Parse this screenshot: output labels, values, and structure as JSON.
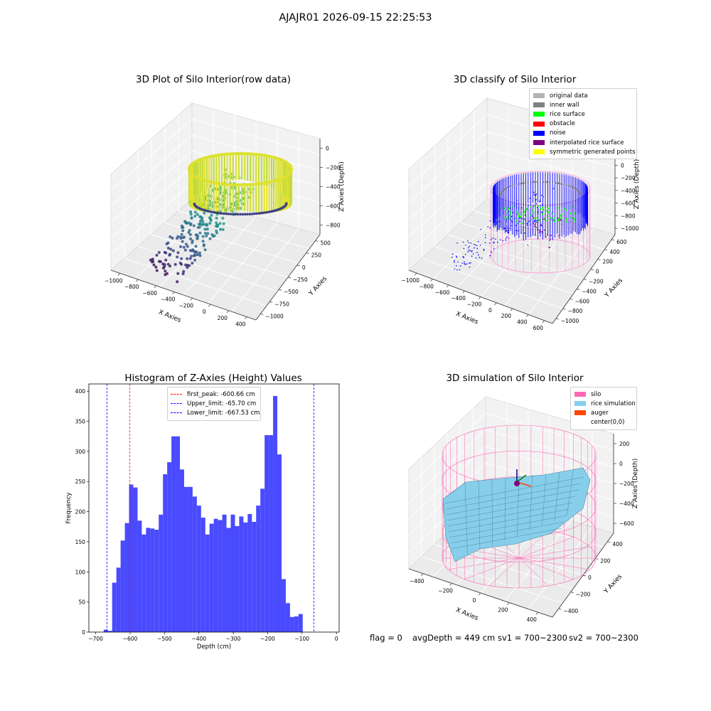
{
  "figure": {
    "suptitle": "AJAJR01 2026-09-15 22:25:53",
    "footer": {
      "flag": "flag = 0",
      "avg": "avgDepth = 449 cm",
      "sv1": "sv1 = 700~2300",
      "sv2": "sv2 = 700~2300"
    }
  },
  "chart_data": [
    {
      "id": "raw",
      "type": "scatter",
      "title": "3D Plot of Silo Interior(row data)",
      "xlabel": "X Axies",
      "ylabel": "Y Axies",
      "zlabel": "Z Axies (Depth)",
      "xticks": [
        "−1000",
        "−800",
        "−600",
        "−400",
        "−200",
        "0",
        "200",
        "400"
      ],
      "yticks": [
        "500",
        "250",
        "0",
        "−250",
        "−500",
        "−750",
        "−1000"
      ],
      "zticks": [
        "0",
        "−200",
        "−400",
        "−600",
        "−800"
      ],
      "colormap": "viridis",
      "colors": {
        "low": "#440154",
        "mid": "#21918c",
        "high": "#fde725"
      }
    },
    {
      "id": "classify",
      "type": "scatter",
      "title": "3D classify of Silo Interior",
      "xlabel": "X Axies",
      "ylabel": "Y Axies",
      "zlabel": "Z Axies (Depth)",
      "xticks": [
        "−1000",
        "−800",
        "−600",
        "−400",
        "−200",
        "0",
        "200",
        "400",
        "600"
      ],
      "yticks": [
        "600",
        "400",
        "200",
        "0",
        "−200",
        "−400",
        "−600",
        "−800",
        "−1000"
      ],
      "zticks": [
        "400",
        "200",
        "0",
        "−200",
        "−400",
        "−600",
        "−800",
        "−1000"
      ],
      "legend": [
        {
          "label": "original data",
          "color": "#b3b3b3"
        },
        {
          "label": "inner wall",
          "color": "#808080"
        },
        {
          "label": "rice surface",
          "color": "#00ff00"
        },
        {
          "label": "obstacle",
          "color": "#ff0000"
        },
        {
          "label": "noise",
          "color": "#0000ff"
        },
        {
          "label": "interpolated rice surface",
          "color": "#800080"
        },
        {
          "label": "symmetric generated points",
          "color": "#ffff00"
        }
      ],
      "silo_color": "#ff8cd2"
    },
    {
      "id": "histogram",
      "type": "bar",
      "title": "Histogram of Z-Axies (Height) Values",
      "xlabel": "Depth (cm)",
      "ylabel": "Frequency",
      "xlim": [
        -720,
        8
      ],
      "ylim": [
        0,
        412
      ],
      "xticks": [
        -700,
        -600,
        -500,
        -400,
        -300,
        -200,
        -100,
        0
      ],
      "yticks": [
        0,
        50,
        100,
        150,
        200,
        250,
        300,
        350,
        400
      ],
      "bin_start": -677,
      "bin_width": 12.32,
      "values": [
        4,
        2,
        82,
        107,
        152,
        181,
        245,
        240,
        185,
        162,
        173,
        172,
        170,
        195,
        262,
        282,
        325,
        325,
        270,
        241,
        241,
        225,
        210,
        190,
        162,
        180,
        188,
        186,
        195,
        173,
        195,
        176,
        192,
        182,
        196,
        183,
        210,
        238,
        327,
        327,
        392,
        295,
        88,
        48,
        25,
        26,
        30
      ],
      "bar_color": "#4a4aff",
      "vlines": [
        {
          "label": "first_peak: -600.66 cm",
          "x": -600.66,
          "color": "#ff0000"
        },
        {
          "label": "Upper_limit: -65.70 cm",
          "x": -65.7,
          "color": "#0000ff"
        },
        {
          "label": "Lower_limit: -667.53 cm",
          "x": -667.53,
          "color": "#0000ff"
        }
      ]
    },
    {
      "id": "simulation",
      "type": "area",
      "title": "3D simulation of Silo Interior",
      "xlabel": "X Axies",
      "ylabel": "Y Axies",
      "zlabel": "Z Axies (Depth)",
      "xticks": [
        "−400",
        "−200",
        "0",
        "200",
        "400"
      ],
      "yticks": [
        "400",
        "200",
        "0",
        "−200",
        "−400"
      ],
      "zticks": [
        "200",
        "0",
        "−200",
        "−400",
        "−600"
      ],
      "legend": [
        {
          "label": "silo",
          "color": "#ff69b4"
        },
        {
          "label": "rice simulation",
          "color": "#87ceeb"
        },
        {
          "label": "auger",
          "color": "#ff4500"
        },
        {
          "label": "center(0,0)",
          "color": "#ffffff"
        }
      ]
    }
  ]
}
